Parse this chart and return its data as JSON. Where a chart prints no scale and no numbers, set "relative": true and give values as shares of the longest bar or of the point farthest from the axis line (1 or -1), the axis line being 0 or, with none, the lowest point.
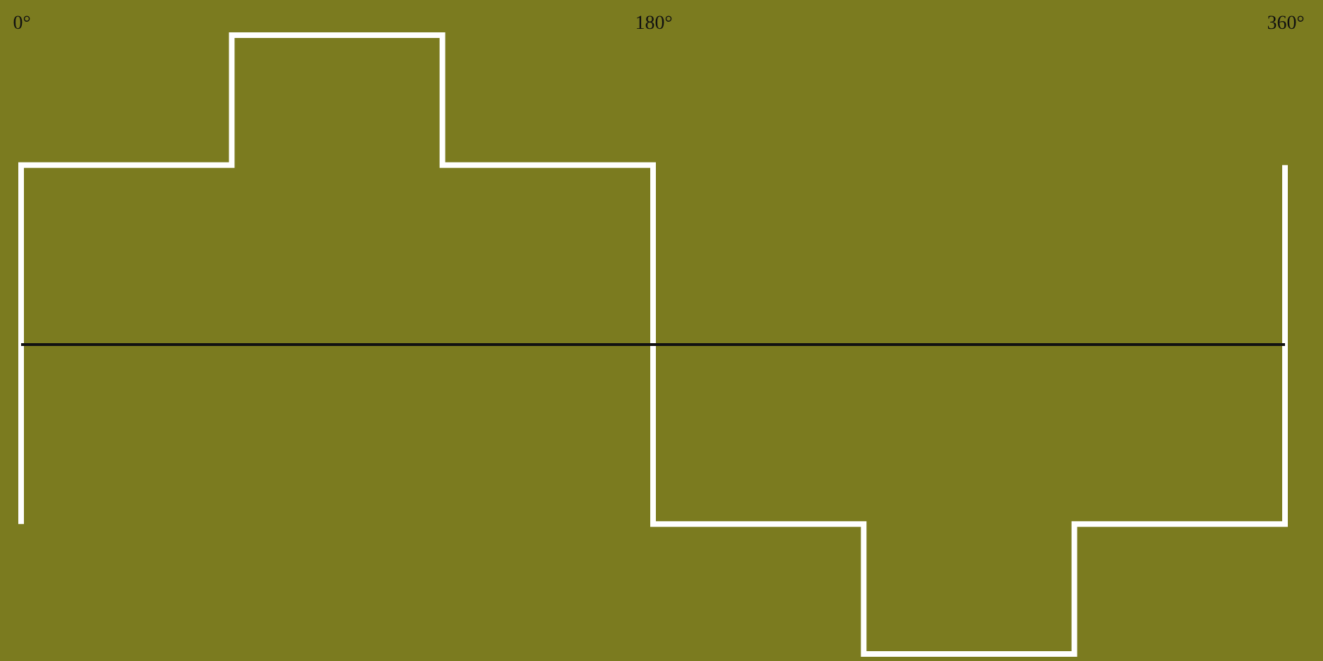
{
  "chart_data": {
    "type": "step",
    "relative": true,
    "x": [
      0,
      0,
      60,
      120,
      180,
      240,
      300,
      360
    ],
    "series": [
      {
        "color": "#ffffff",
        "values": [
          -0.58,
          0.58,
          1,
          0.58,
          -0.58,
          -1,
          -0.58,
          0.58
        ]
      }
    ],
    "xlim": [
      0,
      360
    ],
    "xticks": [
      {
        "value": 0,
        "label": "0°"
      },
      {
        "value": 180,
        "label": "180°"
      },
      {
        "value": 360,
        "label": "360°"
      }
    ],
    "grid": false
  }
}
